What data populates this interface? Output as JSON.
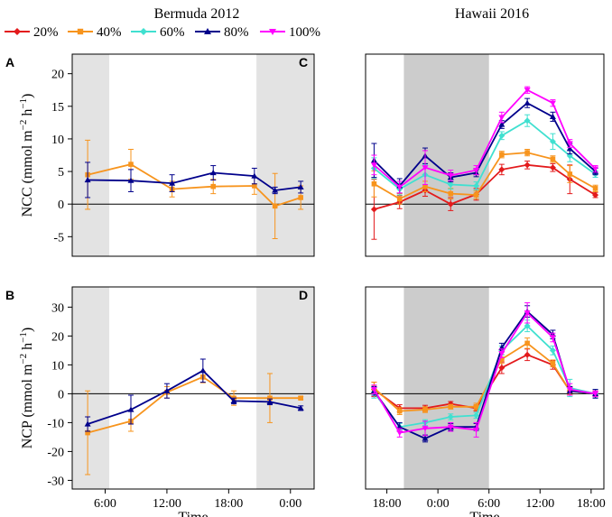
{
  "chart_data": {
    "type": "line",
    "legend": {
      "placement": "top-left",
      "entries": [
        {
          "name": "20%",
          "color": "#e31a1c",
          "marker": "diamond"
        },
        {
          "name": "40%",
          "color": "#f7941d",
          "marker": "square"
        },
        {
          "name": "60%",
          "color": "#40e0d0",
          "marker": "diamond"
        },
        {
          "name": "80%",
          "color": "#00008b",
          "marker": "triangle"
        },
        {
          "name": "100%",
          "color": "#ff00ff",
          "marker": "triangle-down"
        }
      ]
    },
    "column_titles": [
      "Bermuda 2012",
      "Hawaii 2016"
    ],
    "panels": [
      {
        "id": "A",
        "label": "A",
        "ylabel": "NCC (mmol m^-2 h^-1)",
        "xlabel": "",
        "ylim": [
          -8,
          23
        ],
        "yticks": [
          -5,
          0,
          5,
          10,
          15,
          20
        ],
        "xlim": [
          2.8,
          26.3
        ],
        "xticks": [],
        "shaded": [
          [
            2.8,
            6.4
          ],
          [
            20.7,
            26.3
          ]
        ],
        "shade_color": "#e3e3e3",
        "series": [
          {
            "name": "40%",
            "x": [
              4.3,
              8.5,
              12.5,
              16.5,
              20.5,
              22.5,
              25.0
            ],
            "y": [
              4.5,
              6.1,
              2.3,
              2.7,
              2.8,
              -0.3,
              1.0
            ],
            "err": [
              5.3,
              2.3,
              1.2,
              1.1,
              1.3,
              5.0,
              1.8
            ]
          },
          {
            "name": "80%",
            "x": [
              4.3,
              8.5,
              12.5,
              16.5,
              20.5,
              22.5,
              25.0
            ],
            "y": [
              3.7,
              3.6,
              3.2,
              4.8,
              4.3,
              2.1,
              2.6
            ],
            "err": [
              2.7,
              1.7,
              1.3,
              1.1,
              1.2,
              0.5,
              0.9
            ]
          }
        ]
      },
      {
        "id": "B",
        "label": "B",
        "ylabel": "NCP (mmol m^-2 h^-1)",
        "xlabel": "Time",
        "ylim": [
          -33,
          37
        ],
        "yticks": [
          -30,
          -20,
          -10,
          0,
          10,
          20,
          30
        ],
        "xlim": [
          2.8,
          26.3
        ],
        "xticks": [
          {
            "v": 6,
            "l": "6:00"
          },
          {
            "v": 12,
            "l": "12:00"
          },
          {
            "v": 18,
            "l": "18:00"
          },
          {
            "v": 24,
            "l": "0:00"
          }
        ],
        "shaded": [
          [
            2.8,
            6.4
          ],
          [
            20.7,
            26.3
          ]
        ],
        "shade_color": "#e3e3e3",
        "series": [
          {
            "name": "40%",
            "x": [
              4.3,
              8.5,
              12.0,
              15.5,
              18.5,
              22.0,
              25.0
            ],
            "y": [
              -13.5,
              -9.5,
              0.5,
              5.8,
              -1.5,
              -1.5,
              -1.5
            ],
            "err": [
              14.5,
              3.5,
              2.0,
              2.0,
              2.5,
              8.5,
              0.5
            ]
          },
          {
            "name": "80%",
            "x": [
              4.3,
              8.5,
              12.0,
              15.5,
              18.5,
              22.0,
              25.0
            ],
            "y": [
              -10.5,
              -5.5,
              1.0,
              8.0,
              -2.5,
              -2.8,
              -5.0
            ],
            "err": [
              2.5,
              5.0,
              2.5,
              4.0,
              1.0,
              1.0,
              0.8
            ]
          }
        ]
      },
      {
        "id": "C",
        "label": "C",
        "ylabel": "",
        "xlabel": "",
        "ylim": [
          -8,
          23
        ],
        "yticks": [],
        "xlim": [
          15.5,
          43.5
        ],
        "xticks": [],
        "shaded": [
          [
            20.0,
            30.0
          ]
        ],
        "shade_color": "#cccccc",
        "series": [
          {
            "name": "20%",
            "x": [
              16.5,
              19.5,
              22.5,
              25.5,
              28.5,
              31.5,
              34.5,
              37.5,
              39.5,
              42.5
            ],
            "y": [
              -0.8,
              0.3,
              2.1,
              0.0,
              1.5,
              5.3,
              6.0,
              5.6,
              3.8,
              1.4
            ],
            "err": [
              4.6,
              1.0,
              0.9,
              1.0,
              0.9,
              0.8,
              0.6,
              0.6,
              2.2,
              0.4
            ]
          },
          {
            "name": "40%",
            "x": [
              16.5,
              19.5,
              22.5,
              25.5,
              28.5,
              31.5,
              34.5,
              37.5,
              39.5,
              42.5
            ],
            "y": [
              3.1,
              0.8,
              2.7,
              1.6,
              1.4,
              7.6,
              7.9,
              6.9,
              4.6,
              2.4
            ],
            "err": [
              2.0,
              0.8,
              0.8,
              0.8,
              0.6,
              0.5,
              0.5,
              0.5,
              1.3,
              0.5
            ]
          },
          {
            "name": "60%",
            "x": [
              16.5,
              19.5,
              22.5,
              25.5,
              28.5,
              31.5,
              34.5,
              37.5,
              39.5,
              42.5
            ],
            "y": [
              5.5,
              2.3,
              4.5,
              3.0,
              2.8,
              10.5,
              12.8,
              9.6,
              7.4,
              4.6
            ],
            "err": [
              1.6,
              0.9,
              1.5,
              0.7,
              0.6,
              0.6,
              0.9,
              1.2,
              0.9,
              0.5
            ]
          },
          {
            "name": "80%",
            "x": [
              16.5,
              19.5,
              22.5,
              25.5,
              28.5,
              31.5,
              34.5,
              37.5,
              39.5,
              42.5
            ],
            "y": [
              6.7,
              2.8,
              7.4,
              4.1,
              4.8,
              12.2,
              15.5,
              13.4,
              8.5,
              5.0
            ],
            "err": [
              2.6,
              1.1,
              1.2,
              0.7,
              0.6,
              0.6,
              0.7,
              0.7,
              0.8,
              0.5
            ]
          },
          {
            "name": "100%",
            "x": [
              16.5,
              19.5,
              22.5,
              25.5,
              28.5,
              31.5,
              34.5,
              37.5,
              39.5,
              42.5
            ],
            "y": [
              6.0,
              2.6,
              5.6,
              4.4,
              5.2,
              13.3,
              17.5,
              15.5,
              9.3,
              5.4
            ],
            "err": [
              1.5,
              0.9,
              2.6,
              0.8,
              0.7,
              0.8,
              0.5,
              0.5,
              0.6,
              0.5
            ]
          }
        ]
      },
      {
        "id": "D",
        "label": "D",
        "ylabel": "",
        "xlabel": "Time",
        "ylim": [
          -33,
          37
        ],
        "yticks": [],
        "xlim": [
          15.5,
          43.5
        ],
        "xticks": [
          {
            "v": 18,
            "l": "18:00"
          },
          {
            "v": 24,
            "l": "0:00"
          },
          {
            "v": 30,
            "l": "6:00"
          },
          {
            "v": 36,
            "l": "12:00"
          },
          {
            "v": 42,
            "l": "18:00"
          }
        ],
        "shaded": [
          [
            20.0,
            30.0
          ]
        ],
        "shade_color": "#cccccc",
        "series": [
          {
            "name": "20%",
            "x": [
              16.5,
              19.5,
              22.5,
              25.5,
              28.5,
              31.5,
              34.5,
              37.5,
              39.5,
              42.5
            ],
            "y": [
              1.5,
              -5.0,
              -5.0,
              -3.5,
              -5.0,
              9.0,
              13.5,
              10.0,
              1.0,
              0.0
            ],
            "err": [
              2.5,
              1.2,
              1.0,
              0.8,
              1.0,
              2.0,
              2.0,
              1.5,
              1.5,
              1.0
            ]
          },
          {
            "name": "40%",
            "x": [
              16.5,
              19.5,
              22.5,
              25.5,
              28.5,
              31.5,
              34.5,
              37.5,
              39.5,
              42.5
            ],
            "y": [
              2.0,
              -6.0,
              -5.5,
              -4.5,
              -4.5,
              12.0,
              17.5,
              10.5,
              1.0,
              0.0
            ],
            "err": [
              2.0,
              1.2,
              1.0,
              0.8,
              1.2,
              1.5,
              1.8,
              1.2,
              1.2,
              0.8
            ]
          },
          {
            "name": "60%",
            "x": [
              16.5,
              19.5,
              22.5,
              25.5,
              28.5,
              31.5,
              34.5,
              37.5,
              39.5,
              42.5
            ],
            "y": [
              0.5,
              -11.5,
              -10.0,
              -8.0,
              -7.5,
              15.0,
              23.5,
              15.0,
              2.0,
              0.0
            ],
            "err": [
              2.0,
              1.2,
              1.0,
              1.0,
              1.0,
              1.5,
              2.0,
              1.5,
              3.0,
              1.5
            ]
          },
          {
            "name": "80%",
            "x": [
              16.5,
              19.5,
              22.5,
              25.5,
              28.5,
              31.5,
              34.5,
              37.5,
              39.5,
              42.5
            ],
            "y": [
              1.0,
              -11.5,
              -15.5,
              -11.5,
              -11.5,
              16.0,
              28.5,
              20.5,
              1.0,
              0.0
            ],
            "err": [
              1.5,
              1.5,
              1.2,
              1.2,
              1.2,
              1.5,
              2.0,
              1.5,
              1.5,
              1.5
            ]
          },
          {
            "name": "100%",
            "x": [
              16.5,
              19.5,
              22.5,
              25.5,
              28.5,
              31.5,
              34.5,
              37.5,
              39.5,
              42.5
            ],
            "y": [
              1.5,
              -13.5,
              -12.0,
              -11.5,
              -12.5,
              14.0,
              28.0,
              19.5,
              1.5,
              0.0
            ],
            "err": [
              1.5,
              1.5,
              2.5,
              1.5,
              2.5,
              1.5,
              3.5,
              1.5,
              2.0,
              1.0
            ]
          }
        ]
      }
    ]
  }
}
